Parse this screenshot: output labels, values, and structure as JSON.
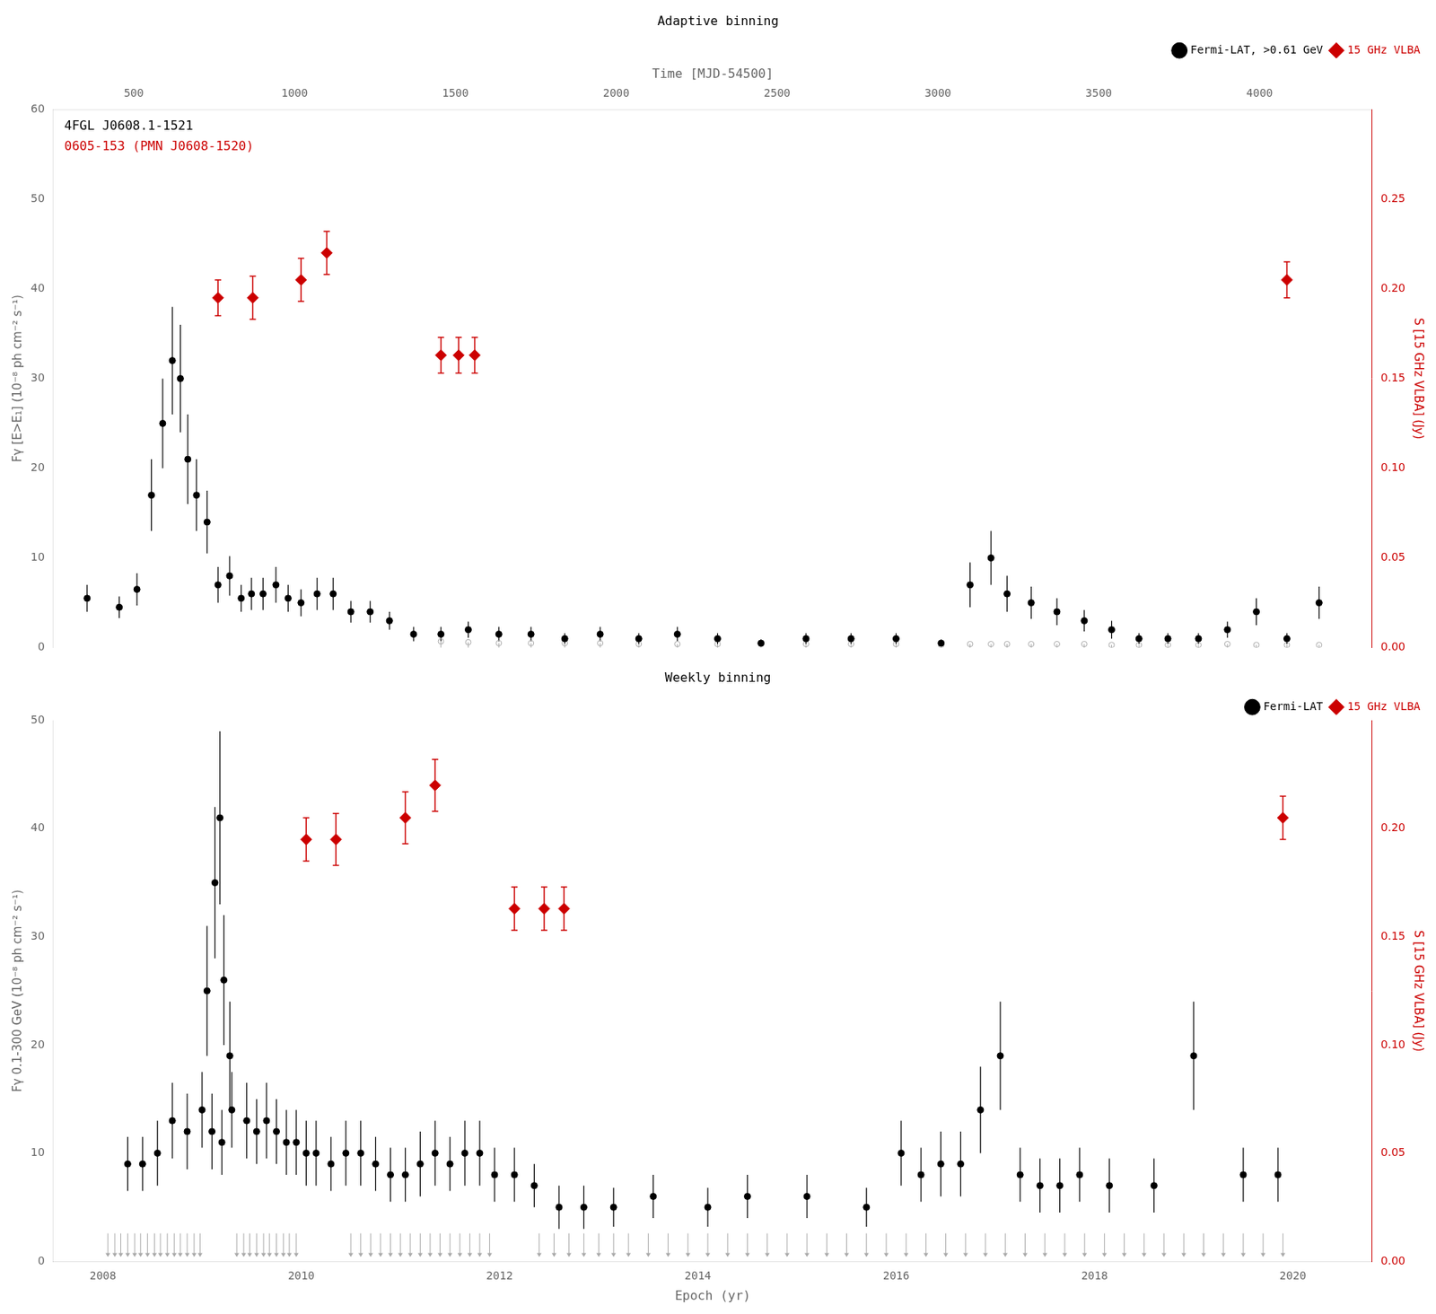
{
  "chart_data": [
    {
      "type": "scatter",
      "title": "Adaptive binning",
      "annotations": [
        {
          "text": "4FGL J0608.1-1521",
          "color": "#000000"
        },
        {
          "text": "0605-153 (PMN J0608-1520)",
          "color": "#cc0000"
        }
      ],
      "xlabel": "Time [MJD-54500]",
      "ylabel": "Fγ [E>E₁] (10⁻⁸ ph cm⁻² s⁻¹)",
      "y2label": "S [15 GHz VLBA] (Jy)",
      "xlim": [
        250,
        4350
      ],
      "xticks": [
        500,
        1000,
        1500,
        2000,
        2500,
        3000,
        3500,
        4000
      ],
      "ylim": [
        0,
        60
      ],
      "yticks": [
        0,
        10,
        20,
        30,
        40,
        50,
        60
      ],
      "y2lim": [
        0,
        0.3
      ],
      "y2ticks": [
        {
          "value": 0,
          "label": "0.00"
        },
        0.05,
        {
          "value": 0.1,
          "label": "0.10"
        },
        0.15,
        {
          "value": 0.2,
          "label": "0.20"
        },
        0.25
      ],
      "grid": false,
      "legend": "upper right",
      "series": [
        {
          "name": "Fermi-LAT, >0.61 GeV",
          "color": "#000000",
          "marker": "circle",
          "x": [
            355,
            455,
            510,
            555,
            590,
            620,
            645,
            668,
            695,
            728,
            762,
            798,
            834,
            866,
            902,
            942,
            980,
            1020,
            1070,
            1120,
            1175,
            1235,
            1295,
            1370,
            1455,
            1540,
            1635,
            1735,
            1840,
            1950,
            2070,
            2190,
            2315,
            2450,
            2590,
            2730,
            2870,
            3010,
            3100,
            3165,
            3215,
            3290,
            3370,
            3455,
            3540,
            3625,
            3715,
            3810,
            3900,
            3990,
            4085,
            4185
          ],
          "values": [
            5.5,
            4.5,
            6.5,
            17,
            25,
            32,
            30,
            21,
            17,
            14,
            7,
            8,
            5.5,
            6,
            6,
            7,
            5.5,
            5,
            6,
            6,
            4,
            4,
            3,
            1.5,
            1.5,
            2,
            1.5,
            1.5,
            1,
            1.5,
            1,
            1.5,
            1,
            0.5,
            1,
            1,
            1,
            0.5,
            7,
            10,
            6,
            5,
            4,
            3,
            2,
            1,
            1,
            1,
            2,
            4,
            1,
            5
          ],
          "yerr_lo": [
            1.5,
            1.2,
            1.8,
            4,
            5,
            6,
            6,
            5,
            4,
            3.5,
            2,
            2.2,
            1.5,
            1.8,
            1.8,
            2,
            1.5,
            1.5,
            1.8,
            1.8,
            1.2,
            1.2,
            1,
            0.8,
            0.8,
            0.9,
            0.8,
            0.8,
            0.6,
            0.8,
            0.6,
            0.8,
            0.6,
            0.4,
            0.6,
            0.6,
            0.6,
            0.4,
            2.5,
            3,
            2,
            1.8,
            1.5,
            1.2,
            1,
            0.6,
            0.6,
            0.6,
            0.9,
            1.5,
            0.6,
            1.8
          ],
          "yerr_hi": [
            1.5,
            1.2,
            1.8,
            4,
            5,
            6,
            6,
            5,
            4,
            3.5,
            2,
            2.2,
            1.5,
            1.8,
            1.8,
            2,
            1.5,
            1.5,
            1.8,
            1.8,
            1.2,
            1.2,
            1,
            0.8,
            0.8,
            0.9,
            0.8,
            0.8,
            0.6,
            0.8,
            0.6,
            0.8,
            0.6,
            0.4,
            0.6,
            0.6,
            0.6,
            0.4,
            2.5,
            3,
            2,
            1.8,
            1.5,
            1.2,
            1,
            0.6,
            0.6,
            0.6,
            0.9,
            1.5,
            0.6,
            1.8
          ]
        },
        {
          "color": "#aaaaaa",
          "marker": "open_circle_arrow",
          "x": [
            1455,
            1540,
            1635,
            1735,
            1840,
            1950,
            2070,
            2190,
            2315,
            2450,
            2590,
            2730,
            2870,
            3010,
            3100,
            3165,
            3215,
            3290,
            3370,
            3455,
            3540,
            3625,
            3715,
            3810,
            3900,
            3990,
            4085,
            4185
          ],
          "values": [
            0.7,
            0.6,
            0.5,
            0.5,
            0.5,
            0.5,
            0.4,
            0.4,
            0.4,
            0.4,
            0.4,
            0.4,
            0.4,
            0.3,
            0.4,
            0.4,
            0.4,
            0.4,
            0.4,
            0.4,
            0.3,
            0.3,
            0.3,
            0.3,
            0.4,
            0.3,
            0.3,
            0.3
          ]
        },
        {
          "name": "15 GHz VLBA",
          "color": "#cc0000",
          "marker": "diamond",
          "axis": "y2",
          "x": [
            762,
            870,
            1020,
            1100,
            4085,
            1455,
            1510,
            1560
          ],
          "values": [
            0.195,
            0.195,
            0.205,
            0.22,
            0.205,
            0.163,
            0.163,
            0.163
          ],
          "yerr": [
            0.01,
            0.012,
            0.012,
            0.012,
            0.01,
            0.01,
            0.01,
            0.01
          ]
        }
      ]
    },
    {
      "type": "scatter",
      "title": "Weekly binning",
      "xlabel": "Epoch (yr)",
      "ylabel": "Fγ 0.1-300 GeV (10⁻⁸ ph cm⁻² s⁻¹)",
      "y2label": "S [15 GHz VLBA] (Jy)",
      "xlim": [
        2007.5,
        2020.8
      ],
      "xticks": [
        2008,
        2010,
        2012,
        2014,
        2016,
        2018,
        2020
      ],
      "ylim": [
        0,
        50
      ],
      "yticks": [
        0,
        10,
        20,
        30,
        40,
        50
      ],
      "y2lim": [
        0,
        0.25
      ],
      "y2ticks": [
        {
          "value": 0,
          "label": "0.00"
        },
        0.05,
        {
          "value": 0.1,
          "label": "0.10"
        },
        0.15,
        {
          "value": 0.2,
          "label": "0.20"
        }
      ],
      "grid": false,
      "legend": "upper right",
      "series": [
        {
          "name": "Fermi-LAT",
          "color": "#000000",
          "marker": "circle",
          "x": [
            2008.25,
            2008.4,
            2008.55,
            2008.7,
            2008.85,
            2009.0,
            2009.1,
            2009.2,
            2009.3,
            2009.45,
            2009.55,
            2009.65,
            2009.75,
            2009.85,
            2009.95,
            2010.05,
            2010.15,
            2010.3,
            2010.45,
            2010.6,
            2010.75,
            2010.9,
            2011.05,
            2011.2,
            2011.35,
            2011.5,
            2011.65,
            2011.8,
            2011.95,
            2012.15,
            2012.35,
            2012.6,
            2012.85,
            2013.15,
            2013.55,
            2014.1,
            2014.5,
            2015.1,
            2015.7,
            2016.05,
            2016.25,
            2016.45,
            2016.65,
            2016.85,
            2017.05,
            2017.25,
            2017.45,
            2017.65,
            2017.85,
            2018.15,
            2018.6,
            2019.0,
            2019.5,
            2019.85,
            2009.05,
            2009.13,
            2009.18,
            2009.22,
            2009.28
          ],
          "values": [
            9,
            9,
            10,
            13,
            12,
            14,
            12,
            11,
            14,
            13,
            12,
            13,
            12,
            11,
            11,
            10,
            10,
            9,
            10,
            10,
            9,
            8,
            8,
            9,
            10,
            9,
            10,
            10,
            8,
            8,
            7,
            5,
            5,
            5,
            6,
            5,
            6,
            6,
            5,
            10,
            8,
            9,
            9,
            14,
            19,
            8,
            7,
            7,
            8,
            7,
            7,
            19,
            8,
            8,
            25,
            35,
            41,
            26,
            19
          ],
          "yerr_lo": [
            2.5,
            2.5,
            3,
            3.5,
            3.5,
            3.5,
            3.5,
            3,
            3.5,
            3.5,
            3,
            3.5,
            3,
            3,
            3,
            3,
            3,
            2.5,
            3,
            3,
            2.5,
            2.5,
            2.5,
            3,
            3,
            2.5,
            3,
            3,
            2.5,
            2.5,
            2,
            2,
            2,
            1.8,
            2,
            1.8,
            2,
            2,
            1.8,
            3,
            2.5,
            3,
            3,
            4,
            5,
            2.5,
            2.5,
            2.5,
            2.5,
            2.5,
            2.5,
            5,
            2.5,
            2.5,
            6,
            7,
            8,
            6,
            5
          ],
          "yerr_hi": [
            2.5,
            2.5,
            3,
            3.5,
            3.5,
            3.5,
            3.5,
            3,
            3.5,
            3.5,
            3,
            3.5,
            3,
            3,
            3,
            3,
            3,
            2.5,
            3,
            3,
            2.5,
            2.5,
            2.5,
            3,
            3,
            2.5,
            3,
            3,
            2.5,
            2.5,
            2,
            2,
            2,
            1.8,
            2,
            1.8,
            2,
            2,
            1.8,
            3,
            2.5,
            3,
            3,
            4,
            5,
            2.5,
            2.5,
            2.5,
            2.5,
            2.5,
            2.5,
            5,
            2.5,
            2.5,
            6,
            7,
            8,
            6,
            5
          ]
        },
        {
          "color": "#aaaaaa",
          "marker": "arrow",
          "x": [
            2008.05,
            2008.12,
            2008.18,
            2008.25,
            2008.32,
            2008.38,
            2008.45,
            2008.52,
            2008.58,
            2008.65,
            2008.72,
            2008.78,
            2008.85,
            2008.92,
            2008.98,
            2009.35,
            2009.42,
            2009.48,
            2009.55,
            2009.62,
            2009.68,
            2009.75,
            2009.82,
            2009.88,
            2009.95,
            2010.5,
            2010.6,
            2010.7,
            2010.8,
            2010.9,
            2011.0,
            2011.1,
            2011.2,
            2011.3,
            2011.4,
            2011.5,
            2011.6,
            2011.7,
            2011.8,
            2011.9,
            2012.4,
            2012.55,
            2012.7,
            2012.85,
            2013.0,
            2013.15,
            2013.3,
            2013.5,
            2013.7,
            2013.9,
            2014.1,
            2014.3,
            2014.5,
            2014.7,
            2014.9,
            2015.1,
            2015.3,
            2015.5,
            2015.7,
            2015.9,
            2016.1,
            2016.3,
            2016.5,
            2016.7,
            2016.9,
            2017.1,
            2017.3,
            2017.5,
            2017.7,
            2017.9,
            2018.1,
            2018.3,
            2018.5,
            2018.7,
            2018.9,
            2019.1,
            2019.3,
            2019.5,
            2019.7,
            2019.9
          ],
          "values": [
            2,
            2,
            2,
            2,
            2,
            2,
            2,
            2,
            2,
            2,
            2,
            2,
            2,
            2,
            2,
            2,
            2,
            2,
            2,
            2,
            2,
            2,
            2,
            2,
            2,
            2,
            2,
            2,
            2,
            2,
            2,
            2,
            2,
            2,
            2,
            2,
            2,
            2,
            2,
            2,
            2,
            2,
            2,
            2,
            2,
            2,
            2,
            2,
            2,
            2,
            2,
            2,
            2,
            2,
            2,
            2,
            2,
            2,
            2,
            2,
            2,
            2,
            2,
            2,
            2,
            2,
            2,
            2,
            2,
            2,
            2,
            2,
            2,
            2,
            2,
            2,
            2,
            2,
            2,
            2
          ]
        },
        {
          "name": "15 GHz VLBA",
          "color": "#cc0000",
          "marker": "diamond",
          "axis": "y2",
          "x": [
            2010.05,
            2010.35,
            2011.05,
            2011.35,
            2019.9,
            2012.15,
            2012.45,
            2012.65
          ],
          "values": [
            0.195,
            0.195,
            0.205,
            0.22,
            0.205,
            0.163,
            0.163,
            0.163
          ],
          "yerr": [
            0.01,
            0.012,
            0.012,
            0.012,
            0.01,
            0.01,
            0.01,
            0.01
          ]
        }
      ]
    }
  ]
}
